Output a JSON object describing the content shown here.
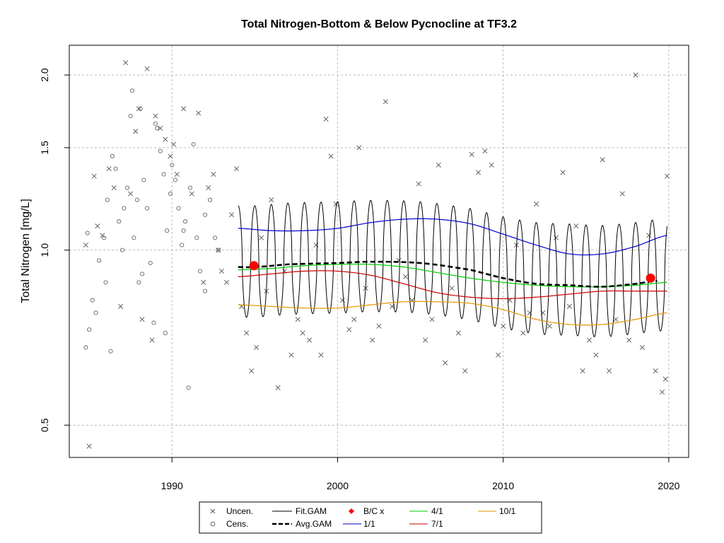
{
  "chart_data": {
    "type": "scatter",
    "title": "Total Nitrogen-Bottom & Below Pycnocline at TF3.2",
    "xlabel": "",
    "ylabel": "Total Nitrogen [mg/L]",
    "xlim": [
      1983.8,
      2021.2
    ],
    "ylim": [
      0.44,
      2.25
    ],
    "y_scale": "log",
    "x_ticks": [
      1990,
      2000,
      2010,
      2020
    ],
    "y_ticks": [
      0.5,
      1.0,
      1.5,
      2.0
    ],
    "y_tick_labels": [
      "0.5",
      "1.0",
      "1.5",
      "2.0"
    ],
    "grid": true,
    "legend_position": "bottom",
    "colors": {
      "uncensored": "#555555",
      "censored": "#666666",
      "fit_gam": "#000000",
      "avg_gam": "#000000",
      "bc": "#ff0000",
      "d1_1": "#0000cc",
      "d4_1": "#00cc00",
      "d7_1": "#cc0000",
      "d10_1": "#e69500",
      "grid": "#bbbbbb"
    },
    "legend": {
      "uncen": "Uncen.",
      "cens": "Cens.",
      "fit_gam": "Fit.GAM",
      "avg_gam": "Avg.GAM",
      "bc": "B/C x",
      "d1_1": "1/1",
      "d4_1": "4/1",
      "d7_1": "7/1",
      "d10_1": "10/1"
    },
    "censored_points": [
      [
        1984.8,
        0.68
      ],
      [
        1985.2,
        0.82
      ],
      [
        1985.4,
        0.78
      ],
      [
        1985.6,
        0.96
      ],
      [
        1985.9,
        1.05
      ],
      [
        1986.1,
        1.22
      ],
      [
        1986.4,
        1.45
      ],
      [
        1986.6,
        1.38
      ],
      [
        1986.8,
        1.12
      ],
      [
        1987.1,
        1.18
      ],
      [
        1987.3,
        1.28
      ],
      [
        1987.5,
        1.7
      ],
      [
        1987.7,
        1.05
      ],
      [
        1987.9,
        1.22
      ],
      [
        1988.1,
        1.75
      ],
      [
        1988.3,
        1.32
      ],
      [
        1988.5,
        1.18
      ],
      [
        1988.7,
        0.95
      ],
      [
        1988.9,
        0.75
      ],
      [
        1989.1,
        1.62
      ],
      [
        1989.3,
        1.48
      ],
      [
        1989.5,
        1.35
      ],
      [
        1989.7,
        1.08
      ],
      [
        1989.9,
        1.25
      ],
      [
        1990.2,
        1.32
      ],
      [
        1990.4,
        1.18
      ],
      [
        1990.6,
        1.02
      ],
      [
        1990.8,
        1.12
      ],
      [
        1991.1,
        1.28
      ],
      [
        1991.3,
        1.52
      ],
      [
        1991.5,
        1.05
      ],
      [
        1991.7,
        0.92
      ],
      [
        1992.0,
        1.15
      ],
      [
        1992.3,
        1.22
      ],
      [
        1992.6,
        1.05
      ],
      [
        1985.0,
        0.73
      ],
      [
        1986.0,
        0.88
      ],
      [
        1987.0,
        1.0
      ],
      [
        1988.0,
        0.88
      ],
      [
        1989.0,
        1.65
      ],
      [
        1990.0,
        1.4
      ],
      [
        1991.0,
        0.58
      ],
      [
        1992.0,
        0.85
      ],
      [
        1987.6,
        1.88
      ],
      [
        1989.6,
        0.72
      ],
      [
        1984.9,
        1.07
      ],
      [
        1986.3,
        0.67
      ],
      [
        1988.2,
        0.91
      ],
      [
        1990.7,
        1.08
      ],
      [
        1992.8,
        1.0
      ]
    ],
    "uncensored_points": [
      [
        1984.8,
        1.02
      ],
      [
        1985.0,
        0.46
      ],
      [
        1985.3,
        1.34
      ],
      [
        1985.5,
        1.1
      ],
      [
        1985.8,
        1.06
      ],
      [
        1986.2,
        1.38
      ],
      [
        1986.5,
        1.28
      ],
      [
        1986.9,
        0.8
      ],
      [
        1987.2,
        2.1
      ],
      [
        1987.5,
        1.25
      ],
      [
        1987.8,
        1.6
      ],
      [
        1988.0,
        1.75
      ],
      [
        1988.2,
        0.76
      ],
      [
        1988.5,
        2.05
      ],
      [
        1988.8,
        0.7
      ],
      [
        1989.0,
        1.7
      ],
      [
        1989.3,
        1.62
      ],
      [
        1989.6,
        1.55
      ],
      [
        1989.9,
        1.45
      ],
      [
        1990.1,
        1.52
      ],
      [
        1990.3,
        1.35
      ],
      [
        1990.7,
        1.75
      ],
      [
        1991.2,
        1.25
      ],
      [
        1991.6,
        1.72
      ],
      [
        1991.9,
        0.88
      ],
      [
        1992.2,
        1.28
      ],
      [
        1992.5,
        1.35
      ],
      [
        1992.8,
        1.0
      ],
      [
        1993.0,
        0.92
      ],
      [
        1993.3,
        0.88
      ],
      [
        1993.6,
        1.15
      ],
      [
        1993.9,
        1.38
      ],
      [
        1994.2,
        0.8
      ],
      [
        1994.5,
        0.72
      ],
      [
        1994.8,
        0.62
      ],
      [
        1995.1,
        0.68
      ],
      [
        1995.4,
        1.05
      ],
      [
        1995.7,
        0.85
      ],
      [
        1996.0,
        1.22
      ],
      [
        1996.4,
        0.58
      ],
      [
        1996.8,
        0.92
      ],
      [
        1997.2,
        0.66
      ],
      [
        1997.6,
        0.76
      ],
      [
        1997.9,
        0.72
      ],
      [
        1998.3,
        0.7
      ],
      [
        1998.7,
        1.02
      ],
      [
        1999.0,
        0.66
      ],
      [
        1999.3,
        1.68
      ],
      [
        1999.6,
        1.45
      ],
      [
        1999.9,
        1.2
      ],
      [
        2000.3,
        0.82
      ],
      [
        2000.7,
        0.73
      ],
      [
        2001.0,
        0.76
      ],
      [
        2001.3,
        1.5
      ],
      [
        2001.7,
        0.86
      ],
      [
        2002.1,
        0.7
      ],
      [
        2002.5,
        0.74
      ],
      [
        2002.9,
        1.8
      ],
      [
        2003.3,
        0.8
      ],
      [
        2003.7,
        0.96
      ],
      [
        2004.1,
        0.9
      ],
      [
        2004.5,
        0.82
      ],
      [
        2004.9,
        1.3
      ],
      [
        2005.3,
        0.7
      ],
      [
        2005.7,
        0.76
      ],
      [
        2006.1,
        1.4
      ],
      [
        2006.5,
        0.64
      ],
      [
        2006.9,
        0.86
      ],
      [
        2007.3,
        0.72
      ],
      [
        2007.7,
        0.62
      ],
      [
        2008.1,
        1.46
      ],
      [
        2008.5,
        1.36
      ],
      [
        2008.9,
        1.48
      ],
      [
        2009.3,
        1.4
      ],
      [
        2009.7,
        0.66
      ],
      [
        2010.0,
        0.74
      ],
      [
        2010.4,
        0.82
      ],
      [
        2010.8,
        1.02
      ],
      [
        2011.2,
        0.72
      ],
      [
        2011.6,
        0.78
      ],
      [
        2012.0,
        1.2
      ],
      [
        2012.4,
        0.78
      ],
      [
        2012.8,
        0.74
      ],
      [
        2013.2,
        1.05
      ],
      [
        2013.6,
        1.36
      ],
      [
        2014.0,
        0.8
      ],
      [
        2014.4,
        1.1
      ],
      [
        2014.8,
        0.62
      ],
      [
        2015.2,
        0.7
      ],
      [
        2015.6,
        0.66
      ],
      [
        2016.0,
        1.43
      ],
      [
        2016.4,
        0.62
      ],
      [
        2016.8,
        0.76
      ],
      [
        2017.2,
        1.25
      ],
      [
        2017.6,
        0.7
      ],
      [
        2018.0,
        2.0
      ],
      [
        2018.4,
        0.68
      ],
      [
        2018.8,
        1.06
      ],
      [
        2019.2,
        0.62
      ],
      [
        2019.6,
        0.57
      ],
      [
        2019.9,
        1.34
      ],
      [
        2019.8,
        0.6
      ]
    ],
    "bc_points": [
      [
        1994.95,
        0.94
      ],
      [
        2018.9,
        0.895
      ]
    ],
    "fit_gam": {
      "x_start": 1994.0,
      "x_end": 2019.9,
      "seasonal_peak": 0.275,
      "seasonal_trough": 0.18
    },
    "avg_gam": {
      "x": [
        1994.0,
        1995.0,
        1997.0,
        2000.0,
        2002.0,
        2005.0,
        2008.0,
        2010.0,
        2012.0,
        2014.0,
        2016.0,
        2018.0,
        2019.3
      ],
      "y": [
        0.935,
        0.935,
        0.945,
        0.95,
        0.955,
        0.95,
        0.925,
        0.895,
        0.875,
        0.87,
        0.865,
        0.875,
        0.885
      ]
    },
    "line_1_1": {
      "x": [
        1994.0,
        1996.0,
        1998.0,
        2000.0,
        2002.0,
        2004.0,
        2006.0,
        2008.0,
        2010.0,
        2012.0,
        2014.0,
        2016.0,
        2018.0,
        2019.9
      ],
      "y": [
        1.09,
        1.08,
        1.08,
        1.09,
        1.115,
        1.13,
        1.13,
        1.11,
        1.065,
        1.02,
        0.985,
        0.985,
        1.015,
        1.06
      ]
    },
    "line_4_1": {
      "x": [
        1994.0,
        1996.0,
        1998.0,
        2000.0,
        2002.0,
        2004.0,
        2006.0,
        2008.0,
        2010.0,
        2012.0,
        2014.0,
        2016.0,
        2018.0,
        2019.9
      ],
      "y": [
        0.925,
        0.93,
        0.94,
        0.945,
        0.945,
        0.935,
        0.915,
        0.895,
        0.88,
        0.87,
        0.865,
        0.865,
        0.87,
        0.88
      ]
    },
    "line_7_1": {
      "x": [
        1994.0,
        1996.0,
        1998.0,
        2000.0,
        2002.0,
        2004.0,
        2006.0,
        2008.0,
        2010.0,
        2012.0,
        2014.0,
        2016.0,
        2018.0,
        2019.9
      ],
      "y": [
        0.9,
        0.91,
        0.92,
        0.92,
        0.905,
        0.875,
        0.845,
        0.83,
        0.825,
        0.83,
        0.84,
        0.85,
        0.85,
        0.85
      ]
    },
    "line_10_1": {
      "x": [
        1994.0,
        1996.0,
        1998.0,
        2000.0,
        2002.0,
        2004.0,
        2006.0,
        2008.0,
        2010.0,
        2012.0,
        2014.0,
        2016.0,
        2018.0,
        2019.9
      ],
      "y": [
        0.805,
        0.8,
        0.795,
        0.795,
        0.805,
        0.815,
        0.815,
        0.81,
        0.79,
        0.76,
        0.745,
        0.745,
        0.76,
        0.78
      ]
    }
  }
}
